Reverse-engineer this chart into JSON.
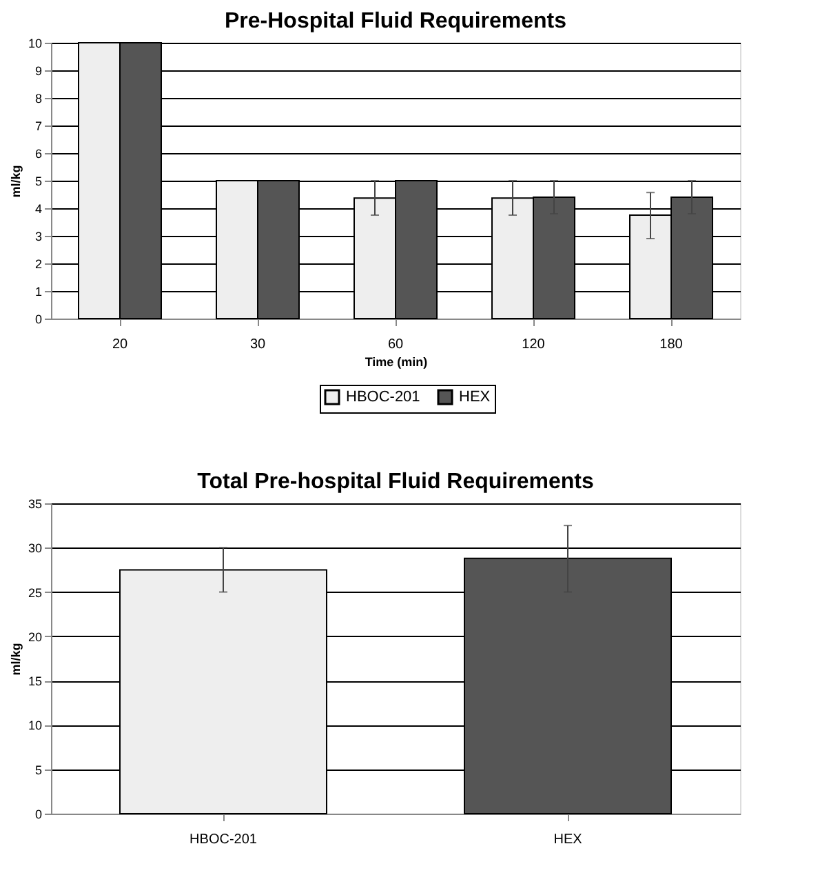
{
  "chart_data": [
    {
      "type": "bar",
      "title": "Pre-Hospital Fluid Requirements",
      "xlabel": "Time (min)",
      "ylabel": "ml/kg",
      "categories": [
        "20",
        "30",
        "60",
        "120",
        "180"
      ],
      "series": [
        {
          "name": "HBOC-201",
          "color": "#eeeeee",
          "values": [
            10,
            5,
            4.37,
            4.37,
            3.75
          ],
          "errors": [
            null,
            null,
            [
              3.75,
              5.0
            ],
            [
              3.75,
              5.0
            ],
            [
              2.9,
              4.57
            ]
          ]
        },
        {
          "name": "HEX",
          "color": "#555555",
          "values": [
            10,
            5,
            5,
            4.4,
            4.4
          ],
          "errors": [
            null,
            null,
            null,
            [
              3.8,
              5.0
            ],
            [
              3.8,
              5.0
            ]
          ]
        }
      ],
      "ylim": [
        0,
        10
      ],
      "yticks": [
        0,
        1,
        2,
        3,
        4,
        5,
        6,
        7,
        8,
        9,
        10
      ],
      "grid": "y",
      "legend": "bottom"
    },
    {
      "type": "bar",
      "title": "Total Pre-hospital Fluid Requirements",
      "ylabel": "ml/kg",
      "categories": [
        "HBOC-201",
        "HEX"
      ],
      "values": [
        27.5,
        28.8
      ],
      "colors": [
        "#eeeeee",
        "#555555"
      ],
      "errors": [
        [
          25,
          30
        ],
        [
          25,
          32.5
        ]
      ],
      "ylim": [
        0,
        35
      ],
      "yticks": [
        0,
        5,
        10,
        15,
        20,
        25,
        30,
        35
      ],
      "grid": "y",
      "legend": false
    }
  ]
}
